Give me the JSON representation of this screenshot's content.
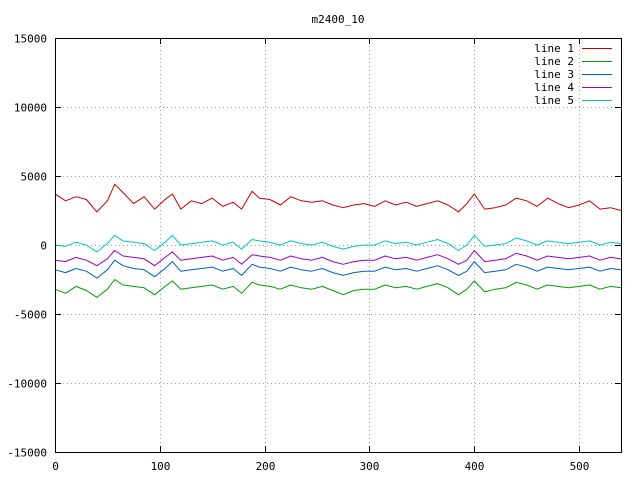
{
  "chart_data": {
    "type": "line",
    "title": "m2400_10",
    "xlabel": "",
    "ylabel": "",
    "xlim": [
      0,
      540
    ],
    "ylim": [
      -15000,
      15000
    ],
    "x_ticks": [
      0,
      100,
      200,
      300,
      400,
      500
    ],
    "y_ticks": [
      -15000,
      -10000,
      -5000,
      0,
      5000,
      10000,
      15000
    ],
    "grid": true,
    "legend_position": "top-right",
    "x": [
      0,
      10,
      20,
      30,
      40,
      50,
      57,
      65,
      75,
      85,
      95,
      105,
      112,
      120,
      130,
      140,
      150,
      160,
      170,
      178,
      188,
      195,
      205,
      215,
      225,
      235,
      245,
      255,
      265,
      275,
      285,
      295,
      305,
      315,
      325,
      335,
      345,
      355,
      365,
      375,
      385,
      393,
      400,
      410,
      420,
      430,
      440,
      450,
      460,
      470,
      480,
      490,
      500,
      510,
      520,
      530,
      540
    ],
    "series": [
      {
        "name": "line 1",
        "color": "#cc0000",
        "values": [
          3700,
          3200,
          3500,
          3300,
          2400,
          3200,
          4400,
          3800,
          3000,
          3500,
          2600,
          3300,
          3700,
          2600,
          3200,
          3000,
          3400,
          2800,
          3100,
          2600,
          3900,
          3400,
          3300,
          2900,
          3500,
          3200,
          3100,
          3200,
          2900,
          2700,
          2900,
          3000,
          2800,
          3200,
          2900,
          3100,
          2800,
          3000,
          3200,
          2900,
          2400,
          3000,
          3700,
          2600,
          2700,
          2900,
          3400,
          3200,
          2800,
          3400,
          3000,
          2700,
          2900,
          3200,
          2600,
          2700,
          2500
        ]
      },
      {
        "name": "line 2",
        "color": "#00a000",
        "values": [
          -3200,
          -3500,
          -3000,
          -3300,
          -3800,
          -3200,
          -2500,
          -2900,
          -3000,
          -3100,
          -3600,
          -3000,
          -2600,
          -3200,
          -3100,
          -3000,
          -2900,
          -3200,
          -3000,
          -3500,
          -2700,
          -2900,
          -3000,
          -3200,
          -2900,
          -3100,
          -3200,
          -3000,
          -3300,
          -3600,
          -3300,
          -3200,
          -3200,
          -2900,
          -3100,
          -3000,
          -3200,
          -3000,
          -2800,
          -3100,
          -3600,
          -3200,
          -2600,
          -3400,
          -3200,
          -3100,
          -2700,
          -2900,
          -3200,
          -2900,
          -3000,
          -3100,
          -3000,
          -2900,
          -3200,
          -3000,
          -3100
        ]
      },
      {
        "name": "line 3",
        "color": "#0060c0",
        "values": [
          -1800,
          -2000,
          -1700,
          -1900,
          -2400,
          -1800,
          -1100,
          -1500,
          -1700,
          -1800,
          -2300,
          -1700,
          -1200,
          -1900,
          -1800,
          -1700,
          -1600,
          -1900,
          -1700,
          -2200,
          -1400,
          -1600,
          -1700,
          -1900,
          -1600,
          -1800,
          -1900,
          -1700,
          -2000,
          -2200,
          -2000,
          -1900,
          -1900,
          -1600,
          -1800,
          -1700,
          -1900,
          -1700,
          -1500,
          -1800,
          -2200,
          -1900,
          -1200,
          -2000,
          -1900,
          -1800,
          -1400,
          -1600,
          -1900,
          -1600,
          -1700,
          -1800,
          -1700,
          -1600,
          -1900,
          -1700,
          -1800
        ]
      },
      {
        "name": "line 4",
        "color": "#9900cc",
        "values": [
          -1100,
          -1200,
          -900,
          -1100,
          -1500,
          -1000,
          -400,
          -800,
          -900,
          -1000,
          -1500,
          -900,
          -500,
          -1100,
          -1000,
          -900,
          -800,
          -1100,
          -900,
          -1400,
          -700,
          -800,
          -900,
          -1100,
          -800,
          -1000,
          -1100,
          -900,
          -1200,
          -1400,
          -1200,
          -1100,
          -1100,
          -800,
          -1000,
          -900,
          -1100,
          -900,
          -700,
          -1000,
          -1400,
          -1100,
          -400,
          -1200,
          -1100,
          -1000,
          -600,
          -800,
          -1100,
          -800,
          -900,
          -1000,
          -900,
          -800,
          -1100,
          -900,
          -1000
        ]
      },
      {
        "name": "line 5",
        "color": "#00c8c8",
        "values": [
          0,
          -100,
          200,
          0,
          -500,
          100,
          700,
          300,
          200,
          100,
          -400,
          200,
          700,
          0,
          100,
          200,
          300,
          0,
          200,
          -300,
          400,
          300,
          200,
          0,
          300,
          100,
          0,
          200,
          -100,
          -300,
          -100,
          0,
          0,
          300,
          100,
          200,
          0,
          200,
          400,
          100,
          -400,
          0,
          700,
          -100,
          0,
          100,
          500,
          300,
          0,
          300,
          200,
          100,
          200,
          300,
          0,
          200,
          100
        ]
      }
    ]
  }
}
